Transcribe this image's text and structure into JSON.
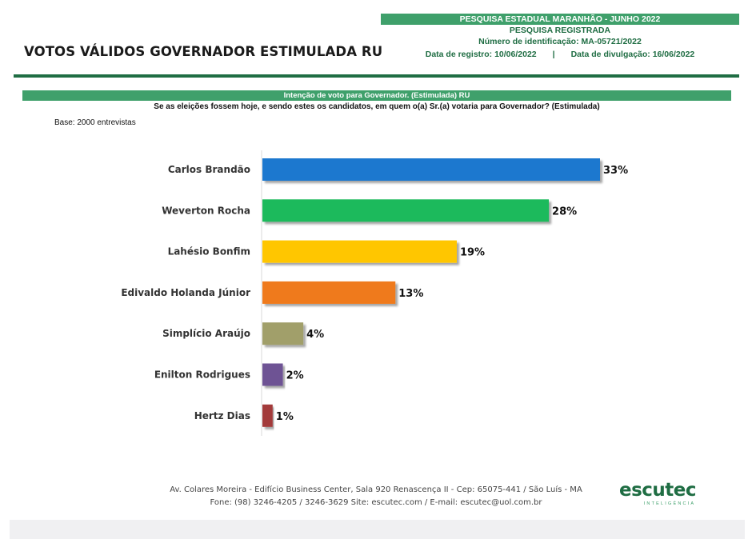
{
  "header": {
    "title": "VOTOS VÁLIDOS GOVERNADOR ESTIMULADA RU",
    "survey_banner": "PESQUISA ESTADUAL MARANHÃO - JUNHO 2022",
    "registered": "PESQUISA REGISTRADA",
    "id_line": "Número de identificação: MA-05721/2022",
    "reg_date": "Data de registro: 10/06/2022",
    "separator": "|",
    "pub_date": "Data de divulgação: 16/06/2022"
  },
  "section": {
    "banner": "Intenção de voto para Governador. (Estimulada) RU",
    "question": "Se as eleições fossem hoje, e sendo estes os candidatos, em quem o(a) Sr.(a) votaria para Governador? (Estimulada)",
    "base": "Base: 2000 entrevistas"
  },
  "chart_data": {
    "type": "bar",
    "orientation": "horizontal",
    "title": "Intenção de voto para Governador. (Estimulada) RU",
    "categories": [
      "Carlos Brandão",
      "Weverton Rocha",
      "Lahésio Bonfim",
      "Edivaldo Holanda Júnior",
      "Simplício Araújo",
      "Enilton Rodrigues",
      "Hertz Dias"
    ],
    "values": [
      33,
      28,
      19,
      13,
      4,
      2,
      1
    ],
    "labels": [
      "33%",
      "28%",
      "19%",
      "13%",
      "4%",
      "2%",
      "1%"
    ],
    "colors": [
      "#1a78cf",
      "#1fba5b",
      "#ffc600",
      "#ef7a1a",
      "#a19f6b",
      "#6e5394",
      "#a33a3a"
    ],
    "xlabel": "",
    "ylabel": "",
    "xlim": [
      0,
      33
    ]
  },
  "footer": {
    "address": "Av. Colares Moreira - Edifício Business Center, Sala 920 Renascença II - Cep: 65075-441 / São Luís - MA",
    "contact": "Fone: (98) 3246-4205 / 3246-3629 Site: escutec.com / E-mail: escutec@uol.com.br"
  },
  "logo": {
    "name": "escutec",
    "tagline": "INTELIGÊNCIA"
  }
}
